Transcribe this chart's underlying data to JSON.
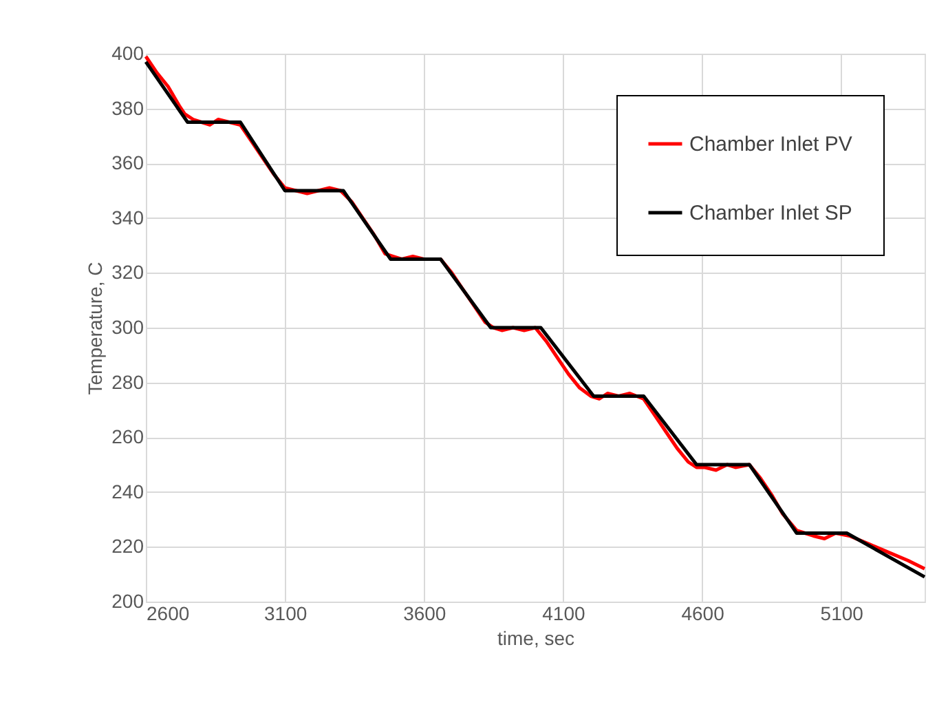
{
  "chart_data": {
    "type": "line",
    "xlabel": "time, sec",
    "ylabel": "Temperature, C",
    "xlim": [
      2600,
      5400
    ],
    "xticks": [
      2600,
      3100,
      3600,
      4100,
      4600,
      5100
    ],
    "ylim": [
      200,
      400
    ],
    "yticks": [
      200,
      220,
      240,
      260,
      280,
      300,
      320,
      340,
      360,
      380,
      400
    ],
    "grid": true,
    "legend": "top right",
    "marker": "none",
    "line_style": "solid",
    "series": [
      {
        "name": "Chamber Inlet PV",
        "color": "#ff0000",
        "x": [
          2600,
          2640,
          2680,
          2720,
          2740,
          2770,
          2800,
          2830,
          2860,
          2900,
          2940,
          2980,
          3020,
          3060,
          3100,
          3140,
          3180,
          3220,
          3260,
          3300,
          3340,
          3380,
          3420,
          3460,
          3490,
          3520,
          3560,
          3600,
          3660,
          3700,
          3740,
          3780,
          3820,
          3850,
          3880,
          3920,
          3960,
          4000,
          4040,
          4080,
          4120,
          4160,
          4200,
          4230,
          4260,
          4300,
          4340,
          4390,
          4430,
          4470,
          4510,
          4550,
          4580,
          4610,
          4650,
          4690,
          4720,
          4770,
          4810,
          4850,
          4890,
          4940,
          4970,
          5000,
          5040,
          5080,
          5130,
          5200,
          5270,
          5340,
          5400
        ],
        "values": [
          399,
          393,
          388,
          381,
          378,
          376,
          375,
          374,
          376,
          375,
          374,
          368,
          362,
          356,
          351,
          350,
          349,
          350,
          351,
          350,
          346,
          340,
          334,
          327,
          326,
          325,
          326,
          325,
          325,
          320,
          314,
          308,
          302,
          300,
          299,
          300,
          299,
          300,
          295,
          289,
          283,
          278,
          275,
          274,
          276,
          275,
          276,
          274,
          268,
          262,
          256,
          251,
          249,
          249,
          248,
          250,
          249,
          250,
          245,
          239,
          232,
          226,
          225,
          224,
          223,
          225,
          224,
          221,
          218,
          215,
          212
        ]
      },
      {
        "name": "Chamber Inlet SP",
        "color": "#000000",
        "x": [
          2600,
          2750,
          2940,
          3100,
          3310,
          3480,
          3660,
          3840,
          4020,
          4210,
          4390,
          4580,
          4770,
          4940,
          5120,
          5400
        ],
        "values": [
          397,
          375,
          375,
          350,
          350,
          325,
          325,
          300,
          300,
          275,
          275,
          250,
          250,
          225,
          225,
          209
        ]
      }
    ]
  }
}
